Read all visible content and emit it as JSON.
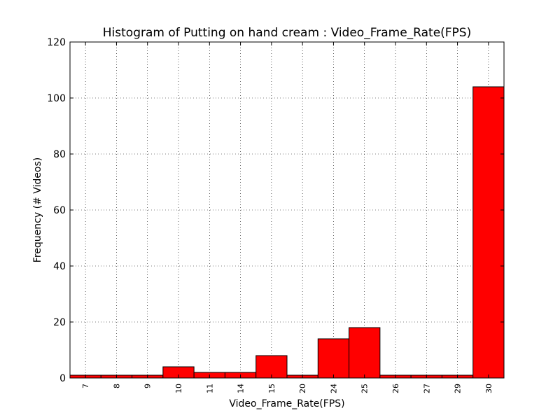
{
  "chart_data": {
    "type": "bar",
    "title": "Histogram of Putting on hand cream : Video_Frame_Rate(FPS)",
    "xlabel": "Video_Frame_Rate(FPS)",
    "ylabel": "Frequency (# Videos)",
    "categories": [
      "7",
      "8",
      "9",
      "10",
      "11",
      "14",
      "15",
      "20",
      "24",
      "25",
      "26",
      "27",
      "29",
      "30"
    ],
    "values": [
      1,
      1,
      1,
      4,
      2,
      2,
      8,
      1,
      14,
      18,
      1,
      1,
      1,
      104
    ],
    "ylim": [
      0,
      120
    ],
    "yticks": [
      "0",
      "20",
      "40",
      "60",
      "80",
      "100",
      "120"
    ],
    "grid": true,
    "bar_color": "#ff0000",
    "edge_color": "#000000"
  }
}
